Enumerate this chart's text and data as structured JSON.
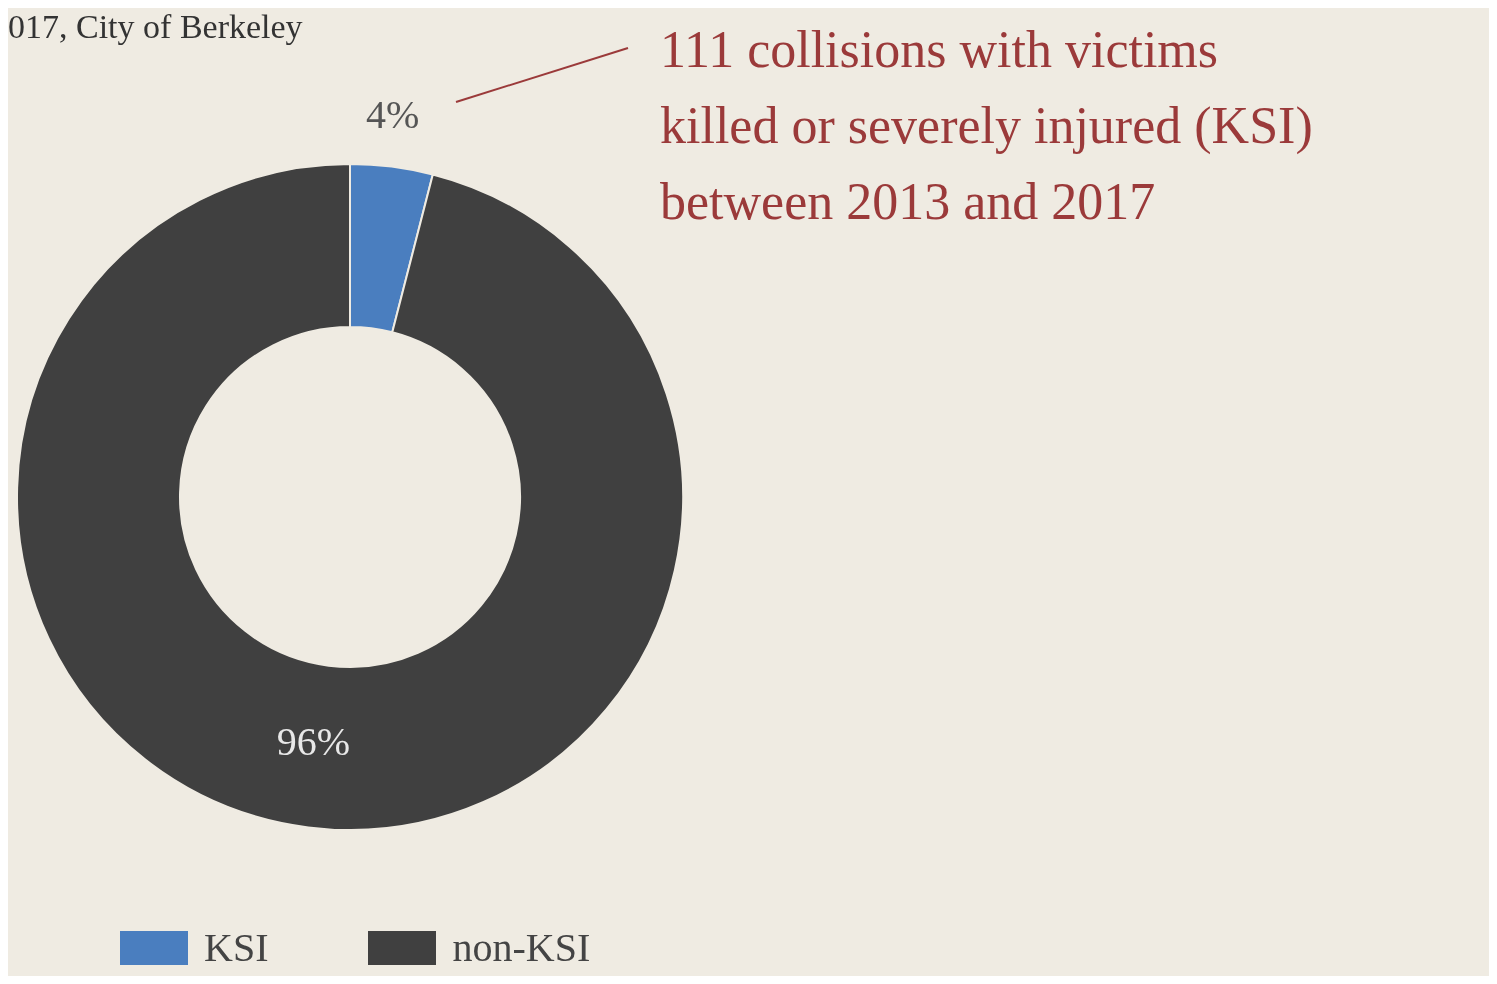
{
  "chart_data": {
    "type": "donut",
    "title": "017, City of Berkeley",
    "categories": [
      "KSI",
      "non-KSI"
    ],
    "values": [
      4,
      96
    ],
    "colors": [
      "#4a7ebf",
      "#404040"
    ],
    "value_labels": [
      "4%",
      "96%"
    ],
    "annotations": [
      "111 collisions with victims\nkilled or severely injured (KSI)\nbetween 2013 and 2017"
    ],
    "legend": "bottom left"
  }
}
